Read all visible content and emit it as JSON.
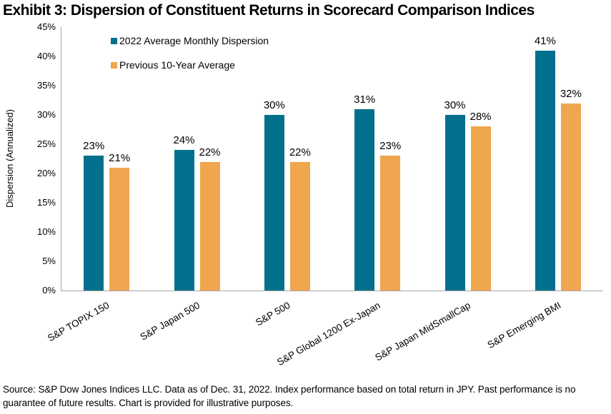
{
  "title": "Exhibit 3: Dispersion of Constituent Returns in Scorecard Comparison Indices",
  "source_note": "Source: S&P Dow Jones Indices LLC. Data as of Dec. 31, 2022. Index performance based on total return in JPY. Past performance is no guarantee of future results. Chart is provided for illustrative purposes.",
  "colors": {
    "series_2022": "#00708C",
    "series_10yr": "#F0A64E",
    "axis_line": "#A6A6A6",
    "text": "#000000"
  },
  "chart_data": {
    "type": "bar",
    "title": "Exhibit 3: Dispersion of Constituent Returns in Scorecard Comparison Indices",
    "xlabel": "",
    "ylabel": "Dispersion (Annualized)",
    "ylim": [
      0,
      45
    ],
    "ytick_step": 5,
    "ytick_suffix": "%",
    "grid": false,
    "legend_position": "top-left-inside",
    "categories": [
      "S&P TOPIX 150",
      "S&P Japan 500",
      "S&P 500",
      "S&P Global 1200 Ex-Japan",
      "S&P Japan MidSmallCap",
      "S&P Emerging BMI"
    ],
    "series": [
      {
        "name": "2022 Average Monthly Dispersion",
        "color": "#00708C",
        "values": [
          23,
          24,
          30,
          31,
          30,
          41
        ],
        "labels": [
          "23%",
          "24%",
          "30%",
          "31%",
          "30%",
          "41%"
        ]
      },
      {
        "name": "Previous 10-Year Average",
        "color": "#F0A64E",
        "values": [
          21,
          22,
          22,
          23,
          28,
          32
        ],
        "labels": [
          "21%",
          "22%",
          "22%",
          "23%",
          "28%",
          "32%"
        ]
      }
    ]
  }
}
